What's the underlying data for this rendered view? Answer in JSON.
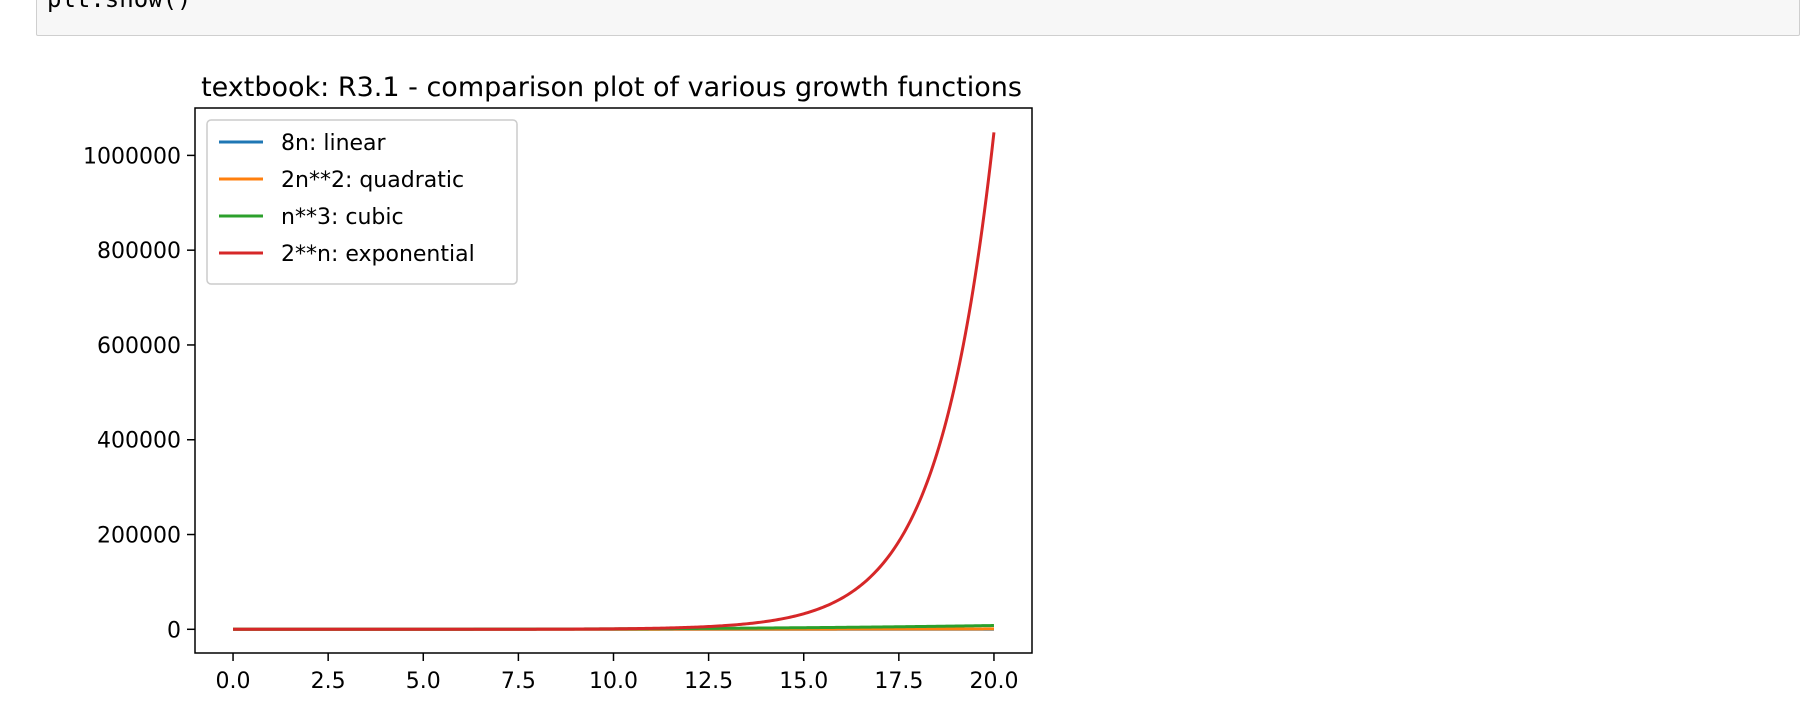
{
  "code_cell": {
    "visible_line": "plt.show()"
  },
  "chart_data": {
    "type": "line",
    "title": "textbook: R3.1 - comparison plot of various growth functions",
    "xlabel": "",
    "ylabel": "",
    "xlim": [
      -1,
      21
    ],
    "ylim": [
      -50000,
      1100000
    ],
    "xticks": [
      "0.0",
      "2.5",
      "5.0",
      "7.5",
      "10.0",
      "12.5",
      "15.0",
      "17.5",
      "20.0"
    ],
    "xtick_values": [
      0,
      2.5,
      5,
      7.5,
      10,
      12.5,
      15,
      17.5,
      20
    ],
    "yticks": [
      "0",
      "200000",
      "400000",
      "600000",
      "800000",
      "1000000"
    ],
    "ytick_values": [
      0,
      200000,
      400000,
      600000,
      800000,
      1000000
    ],
    "grid": false,
    "legend_position": "upper-left",
    "x": [
      0,
      1,
      2,
      3,
      4,
      5,
      6,
      7,
      8,
      9,
      10,
      11,
      12,
      13,
      14,
      15,
      16,
      17,
      18,
      19,
      20
    ],
    "series": [
      {
        "name": "8n: linear",
        "color": "#1f77b4",
        "values": [
          0,
          8,
          16,
          24,
          32,
          40,
          48,
          56,
          64,
          72,
          80,
          88,
          96,
          104,
          112,
          120,
          128,
          136,
          144,
          152,
          160
        ]
      },
      {
        "name": "2n**2: quadratic",
        "color": "#ff7f0e",
        "values": [
          0,
          2,
          8,
          18,
          32,
          50,
          72,
          98,
          128,
          162,
          200,
          242,
          288,
          338,
          392,
          450,
          512,
          578,
          648,
          722,
          800
        ]
      },
      {
        "name": "n**3: cubic",
        "color": "#2ca02c",
        "values": [
          0,
          1,
          8,
          27,
          64,
          125,
          216,
          343,
          512,
          729,
          1000,
          1331,
          1728,
          2197,
          2744,
          3375,
          4096,
          4913,
          5832,
          6859,
          8000
        ]
      },
      {
        "name": "2**n: exponential",
        "color": "#d62728",
        "values": [
          1,
          2,
          4,
          8,
          16,
          32,
          64,
          128,
          256,
          512,
          1024,
          2048,
          4096,
          8192,
          16384,
          32768,
          65536,
          131072,
          262144,
          524288,
          1048576
        ]
      }
    ]
  }
}
